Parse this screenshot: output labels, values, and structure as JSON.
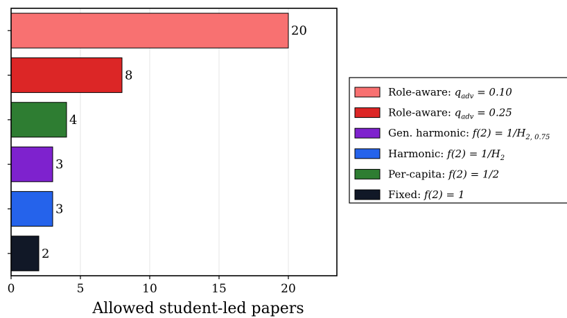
{
  "chart_data": {
    "type": "bar",
    "orientation": "horizontal",
    "xlabel": "Allowed student-led papers",
    "ylabel": "",
    "xlim": [
      0,
      23.5
    ],
    "xticks": [
      0,
      5,
      10,
      15,
      20
    ],
    "grid": "vertical",
    "legend_placement": "right",
    "bars": [
      {
        "key": "role_aware_010",
        "value": 20,
        "label": "20",
        "color": "#f87171"
      },
      {
        "key": "role_aware_025",
        "value": 8,
        "label": "8",
        "color": "#dc2626"
      },
      {
        "key": "per_capita",
        "value": 4,
        "label": "4",
        "color": "#2e7d32"
      },
      {
        "key": "gen_harmonic",
        "value": 3,
        "label": "3",
        "color": "#7e22ce"
      },
      {
        "key": "harmonic",
        "value": 3,
        "label": "3",
        "color": "#2563eb"
      },
      {
        "key": "fixed",
        "value": 2,
        "label": "2",
        "color": "#111827"
      }
    ],
    "legend": [
      {
        "key": "role_aware_010",
        "text": "Role-aware: ",
        "math": "q",
        "sub": "adv",
        "math_tail": " = 0.10",
        "color": "#f87171"
      },
      {
        "key": "role_aware_025",
        "text": "Role-aware: ",
        "math": "q",
        "sub": "adv",
        "math_tail": " = 0.25",
        "color": "#dc2626"
      },
      {
        "key": "gen_harmonic",
        "text": "Gen. harmonic: ",
        "math": "f(2) = 1/H",
        "sub": "2, 0.75",
        "math_tail": "",
        "color": "#7e22ce"
      },
      {
        "key": "harmonic",
        "text": "Harmonic: ",
        "math": "f(2) = 1/H",
        "sub": "2",
        "math_tail": "",
        "color": "#2563eb"
      },
      {
        "key": "per_capita",
        "text": "Per-capita: ",
        "math": "f(2) = 1/2",
        "sub": "",
        "math_tail": "",
        "color": "#2e7d32"
      },
      {
        "key": "fixed",
        "text": "Fixed: ",
        "math": "f(2) = 1",
        "sub": "",
        "math_tail": "",
        "color": "#111827"
      }
    ]
  }
}
